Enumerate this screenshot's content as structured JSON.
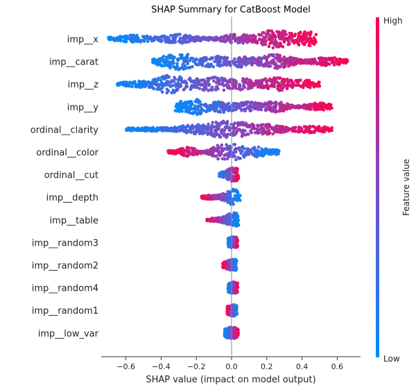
{
  "chart_data": {
    "type": "scatter",
    "subtype": "shap-beeswarm",
    "title": "SHAP Summary for CatBoost Model",
    "xlabel": "SHAP value (impact on model output)",
    "xlim": [
      -0.75,
      0.72
    ],
    "xticks": [
      -0.6,
      -0.4,
      -0.2,
      0.0,
      0.2,
      0.4,
      0.6
    ],
    "xtick_labels": [
      "−0.6",
      "−0.4",
      "−0.2",
      "0.0",
      "0.2",
      "0.4",
      "0.6"
    ],
    "zero_line": true,
    "grid": false,
    "colorbar": {
      "label": "Feature value",
      "high": "High",
      "low": "Low",
      "position": "right"
    },
    "colors": {
      "low": "#008bfb",
      "high": "#ff0052"
    },
    "features": [
      {
        "name": "imp__x",
        "min": -0.7,
        "max": 0.48,
        "peaks": [
          [
            -0.55,
            0.35
          ],
          [
            -0.3,
            0.45
          ],
          [
            0.05,
            0.5
          ],
          [
            0.25,
            1.0
          ],
          [
            0.43,
            0.8
          ]
        ],
        "dir": 1
      },
      {
        "name": "imp__carat",
        "min": -0.45,
        "max": 0.66,
        "peaks": [
          [
            -0.35,
            0.5
          ],
          [
            -0.3,
            0.95
          ],
          [
            -0.1,
            0.6
          ],
          [
            0.05,
            0.6
          ],
          [
            0.25,
            0.75
          ],
          [
            0.55,
            0.4
          ]
        ],
        "dir": 1
      },
      {
        "name": "imp__z",
        "min": -0.65,
        "max": 0.5,
        "peaks": [
          [
            -0.5,
            0.3
          ],
          [
            -0.35,
            1.0
          ],
          [
            -0.25,
            0.7
          ],
          [
            -0.1,
            0.8
          ],
          [
            0.05,
            0.6
          ],
          [
            0.25,
            0.7
          ],
          [
            0.4,
            0.4
          ]
        ],
        "dir": 1
      },
      {
        "name": "imp__y",
        "min": -0.32,
        "max": 0.57,
        "peaks": [
          [
            -0.28,
            0.55
          ],
          [
            -0.2,
            0.85
          ],
          [
            -0.05,
            0.6
          ],
          [
            0.1,
            0.5
          ],
          [
            0.25,
            0.55
          ],
          [
            0.5,
            0.35
          ]
        ],
        "dir": 1
      },
      {
        "name": "ordinal__clarity",
        "min": -0.6,
        "max": 0.57,
        "peaks": [
          [
            -0.45,
            0.15
          ],
          [
            -0.2,
            0.5
          ],
          [
            -0.05,
            0.95
          ],
          [
            0.05,
            0.75
          ],
          [
            0.2,
            0.5
          ],
          [
            0.45,
            0.3
          ]
        ],
        "dir": 1
      },
      {
        "name": "ordinal__color",
        "min": -0.36,
        "max": 0.27,
        "peaks": [
          [
            -0.25,
            0.45
          ],
          [
            -0.05,
            0.9
          ],
          [
            0.03,
            0.85
          ],
          [
            0.15,
            0.5
          ],
          [
            0.25,
            0.2
          ]
        ],
        "dir": -1
      },
      {
        "name": "ordinal__cut",
        "min": -0.07,
        "max": 0.04,
        "peaks": [
          [
            -0.02,
            0.45
          ],
          [
            0.01,
            1.0
          ]
        ],
        "dir": 1
      },
      {
        "name": "imp__depth",
        "min": -0.17,
        "max": 0.05,
        "peaks": [
          [
            -0.12,
            0.15
          ],
          [
            -0.03,
            0.45
          ],
          [
            0.01,
            0.9
          ]
        ],
        "dir": -1
      },
      {
        "name": "imp__table",
        "min": -0.14,
        "max": 0.04,
        "peaks": [
          [
            -0.1,
            0.1
          ],
          [
            -0.03,
            0.35
          ],
          [
            0.01,
            0.9
          ]
        ],
        "dir": -1
      },
      {
        "name": "imp__random3",
        "min": -0.02,
        "max": 0.035,
        "peaks": [
          [
            0.0,
            0.7
          ],
          [
            0.01,
            0.9
          ]
        ],
        "dir": 1
      },
      {
        "name": "imp__random2",
        "min": -0.05,
        "max": 0.03,
        "peaks": [
          [
            -0.01,
            0.6
          ],
          [
            0.01,
            0.9
          ]
        ],
        "dir": -1
      },
      {
        "name": "imp__random4",
        "min": -0.02,
        "max": 0.035,
        "peaks": [
          [
            0.0,
            0.7
          ],
          [
            0.01,
            0.9
          ]
        ],
        "dir": 1
      },
      {
        "name": "imp__random1",
        "min": -0.025,
        "max": 0.03,
        "peaks": [
          [
            0.0,
            0.7
          ],
          [
            0.01,
            0.9
          ]
        ],
        "dir": -1
      },
      {
        "name": "imp__low_var",
        "min": -0.04,
        "max": 0.04,
        "peaks": [
          [
            0.0,
            0.9
          ],
          [
            0.03,
            0.3
          ]
        ],
        "dir": 1
      }
    ]
  }
}
